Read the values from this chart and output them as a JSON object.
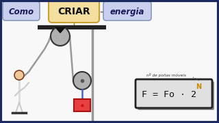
{
  "bg_color": "#f8f8f8",
  "border_color": "#1a2a5e",
  "title_como": "Como",
  "title_criar": "CRIAR",
  "title_energia": "energia",
  "criar_bg": "#f5dfa0",
  "criar_edge": "#c8a030",
  "como_bg": "#c8d0ee",
  "como_edge": "#8899bb",
  "energia_bg": "#c8d0ee",
  "energia_edge": "#8899bb",
  "formula_note": "nº de polias móveis",
  "formula_box_color": "#e0e0e0",
  "formula_box_edge": "#222222",
  "pulley_color": "#b0b0b0",
  "pulley_edge": "#333333",
  "rope_color": "#999999",
  "load_color": "#e84040",
  "load_edge": "#aa1111",
  "bar_color": "#222222",
  "pole_color": "#999999",
  "person_body": "#ffffff",
  "person_edge": "#333333"
}
